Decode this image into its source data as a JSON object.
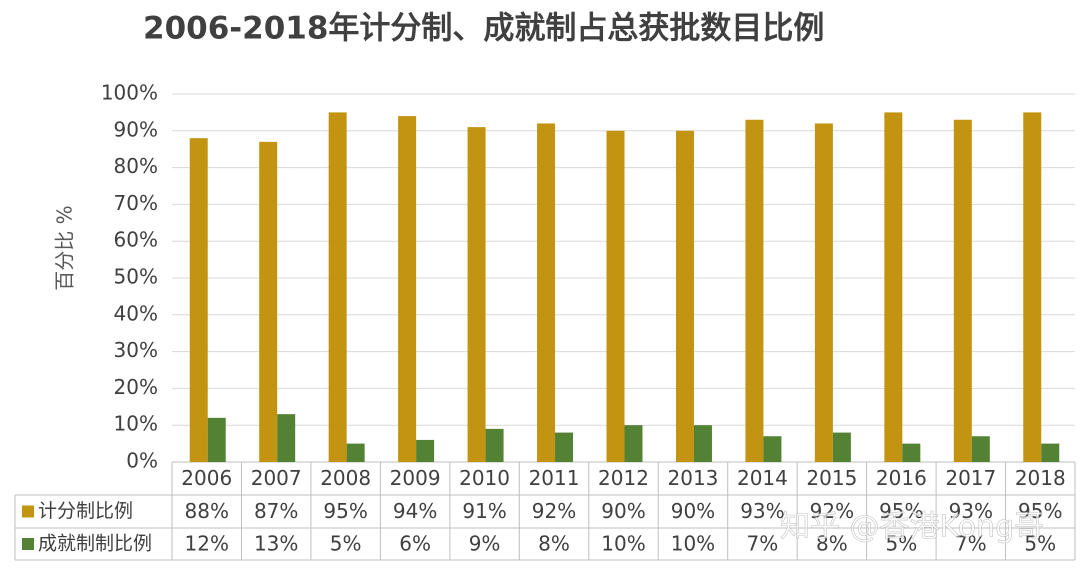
{
  "chart_data": {
    "type": "bar",
    "title": "2006-2018年计分制、成就制占总获批数目比例",
    "y_label": "百分比 %",
    "watermark": "知乎 @香港Kong哥",
    "categories": [
      "2006",
      "2007",
      "2008",
      "2009",
      "2010",
      "2011",
      "2012",
      "2013",
      "2014",
      "2015",
      "2016",
      "2017",
      "2018"
    ],
    "series": [
      {
        "name": "计分制比例",
        "color": "#c39412",
        "values": [
          88,
          87,
          95,
          94,
          91,
          92,
          90,
          90,
          93,
          92,
          95,
          93,
          95
        ],
        "value_labels": [
          "88%",
          "87%",
          "95%",
          "94%",
          "91%",
          "92%",
          "90%",
          "90%",
          "93%",
          "92%",
          "95%",
          "93%",
          "95%"
        ]
      },
      {
        "name": "成就制制比例",
        "color": "#548235",
        "values": [
          12,
          13,
          5,
          6,
          9,
          8,
          10,
          10,
          7,
          8,
          5,
          7,
          5
        ],
        "value_labels": [
          "12%",
          "13%",
          "5%",
          "6%",
          "9%",
          "8%",
          "10%",
          "10%",
          "7%",
          "8%",
          "5%",
          "7%",
          "5%"
        ]
      }
    ],
    "ylim": [
      0,
      100
    ],
    "yticks": [
      {
        "value": 0,
        "label": "0%"
      },
      {
        "value": 10,
        "label": "10%"
      },
      {
        "value": 20,
        "label": "20%"
      },
      {
        "value": 30,
        "label": "30%"
      },
      {
        "value": 40,
        "label": "40%"
      },
      {
        "value": 50,
        "label": "50%"
      },
      {
        "value": 60,
        "label": "60%"
      },
      {
        "value": 70,
        "label": "70%"
      },
      {
        "value": 80,
        "label": "80%"
      },
      {
        "value": 90,
        "label": "90%"
      },
      {
        "value": 100,
        "label": "100%"
      }
    ],
    "grid": true
  }
}
